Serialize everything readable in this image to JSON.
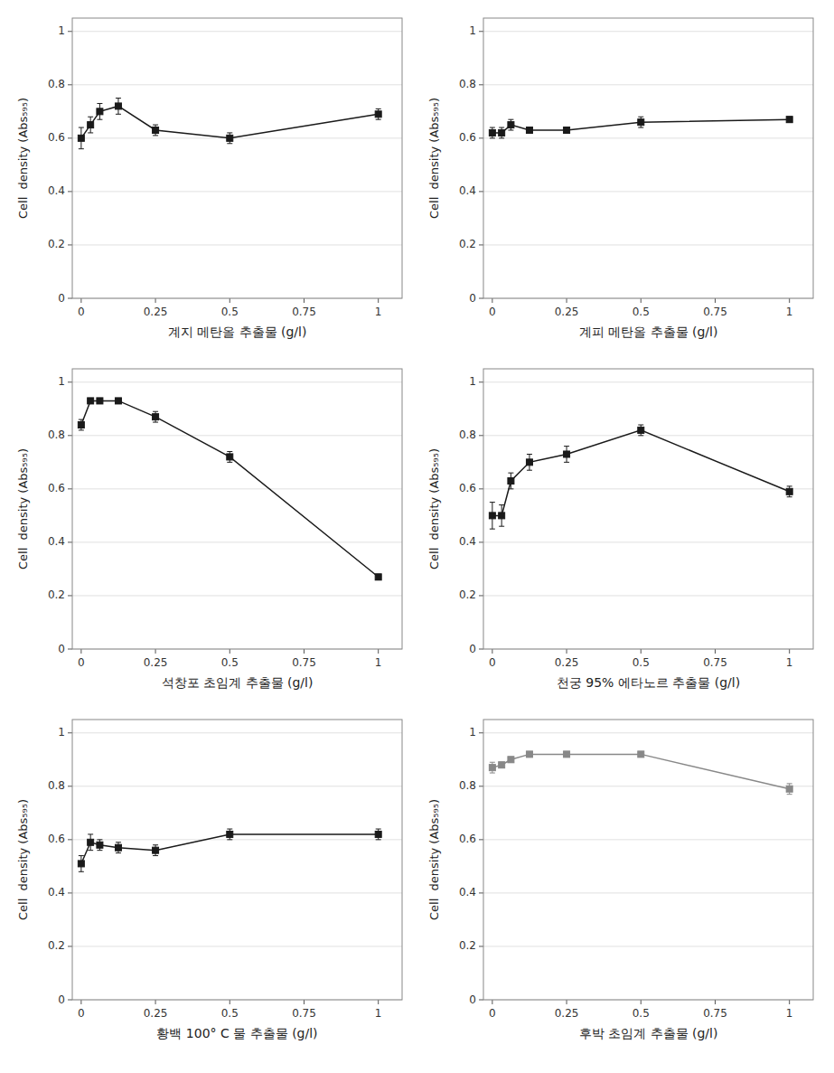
{
  "chart_data": [
    {
      "type": "line",
      "x_label": "계지 메탄올 추출물 (g/l)",
      "y_label": "Cell  density (Abs₅₉₅)",
      "x": [
        0,
        0.0313,
        0.0625,
        0.125,
        0.25,
        0.5,
        1.0
      ],
      "values": [
        0.6,
        0.65,
        0.7,
        0.72,
        0.63,
        0.6,
        0.69
      ],
      "errors": [
        0.04,
        0.03,
        0.03,
        0.03,
        0.02,
        0.02,
        0.02
      ],
      "color": "#1a1a1a",
      "marker": "square",
      "line_style": "solid",
      "xlim": [
        -0.03,
        1.08
      ],
      "xticks": [
        0,
        0.25,
        0.5,
        0.75,
        1
      ],
      "ylim": [
        0,
        1.05
      ],
      "yticks": [
        0,
        0.2,
        0.4,
        0.6,
        0.8,
        1
      ],
      "grid": true
    },
    {
      "type": "line",
      "x_label": "계피 메탄올 추출물 (g/l)",
      "y_label": "Cell  density (Abs₅₉₅)",
      "x": [
        0,
        0.0313,
        0.0625,
        0.125,
        0.25,
        0.5,
        1.0
      ],
      "values": [
        0.62,
        0.62,
        0.65,
        0.63,
        0.63,
        0.66,
        0.67
      ],
      "errors": [
        0.02,
        0.02,
        0.02,
        0.01,
        0.01,
        0.02,
        0.01
      ],
      "color": "#1a1a1a",
      "marker": "square",
      "line_style": "solid",
      "xlim": [
        -0.03,
        1.08
      ],
      "xticks": [
        0,
        0.25,
        0.5,
        0.75,
        1
      ],
      "ylim": [
        0,
        1.05
      ],
      "yticks": [
        0,
        0.2,
        0.4,
        0.6,
        0.8,
        1
      ],
      "grid": true
    },
    {
      "type": "line",
      "x_label": "석창포 초임계 추출물 (g/l)",
      "y_label": "Cell  density (Abs₅₉₅)",
      "x": [
        0,
        0.0313,
        0.0625,
        0.125,
        0.25,
        0.5,
        1.0
      ],
      "values": [
        0.84,
        0.93,
        0.93,
        0.93,
        0.87,
        0.72,
        0.27
      ],
      "errors": [
        0.02,
        0.01,
        0.01,
        0.01,
        0.02,
        0.02,
        0.01
      ],
      "color": "#1a1a1a",
      "marker": "square",
      "line_style": "solid",
      "xlim": [
        -0.03,
        1.08
      ],
      "xticks": [
        0,
        0.25,
        0.5,
        0.75,
        1
      ],
      "ylim": [
        0,
        1.05
      ],
      "yticks": [
        0,
        0.2,
        0.4,
        0.6,
        0.8,
        1
      ],
      "grid": true
    },
    {
      "type": "line",
      "x_label": "천궁 95% 에타노르 추출물 (g/l)",
      "y_label": "Cell  density (Abs₅₉₅)",
      "x": [
        0,
        0.0313,
        0.0625,
        0.125,
        0.25,
        0.5,
        1.0
      ],
      "values": [
        0.5,
        0.5,
        0.63,
        0.7,
        0.73,
        0.82,
        0.59
      ],
      "errors": [
        0.05,
        0.04,
        0.03,
        0.03,
        0.03,
        0.02,
        0.02
      ],
      "color": "#1a1a1a",
      "marker": "square",
      "line_style": "solid",
      "xlim": [
        -0.03,
        1.08
      ],
      "xticks": [
        0,
        0.25,
        0.5,
        0.75,
        1
      ],
      "ylim": [
        0,
        1.05
      ],
      "yticks": [
        0,
        0.2,
        0.4,
        0.6,
        0.8,
        1
      ],
      "grid": true
    },
    {
      "type": "line",
      "x_label": "황백 100° C 물 추출물 (g/l)",
      "y_label": "Cell  density (Abs₅₉₅)",
      "x": [
        0,
        0.0313,
        0.0625,
        0.125,
        0.25,
        0.5,
        1.0
      ],
      "values": [
        0.51,
        0.59,
        0.58,
        0.57,
        0.56,
        0.62,
        0.62
      ],
      "errors": [
        0.03,
        0.03,
        0.02,
        0.02,
        0.02,
        0.02,
        0.02
      ],
      "color": "#1a1a1a",
      "marker": "square",
      "line_style": "solid",
      "xlim": [
        -0.03,
        1.08
      ],
      "xticks": [
        0,
        0.25,
        0.5,
        0.75,
        1
      ],
      "ylim": [
        0,
        1.05
      ],
      "yticks": [
        0,
        0.2,
        0.4,
        0.6,
        0.8,
        1
      ],
      "grid": true
    },
    {
      "type": "line",
      "x_label": "후박 초임계 추출물 (g/l)",
      "y_label": "Cell  density (Abs₅₉₅)",
      "x": [
        0,
        0.0313,
        0.0625,
        0.125,
        0.25,
        0.5,
        1.0
      ],
      "values": [
        0.87,
        0.88,
        0.9,
        0.92,
        0.92,
        0.92,
        0.79
      ],
      "errors": [
        0.02,
        0.01,
        0.01,
        0.01,
        0.01,
        0.01,
        0.02
      ],
      "color": "#888888",
      "marker": "square",
      "line_style": "solid",
      "xlim": [
        -0.03,
        1.08
      ],
      "xticks": [
        0,
        0.25,
        0.5,
        0.75,
        1
      ],
      "ylim": [
        0,
        1.05
      ],
      "yticks": [
        0,
        0.2,
        0.4,
        0.6,
        0.8,
        1
      ],
      "grid": true
    }
  ]
}
